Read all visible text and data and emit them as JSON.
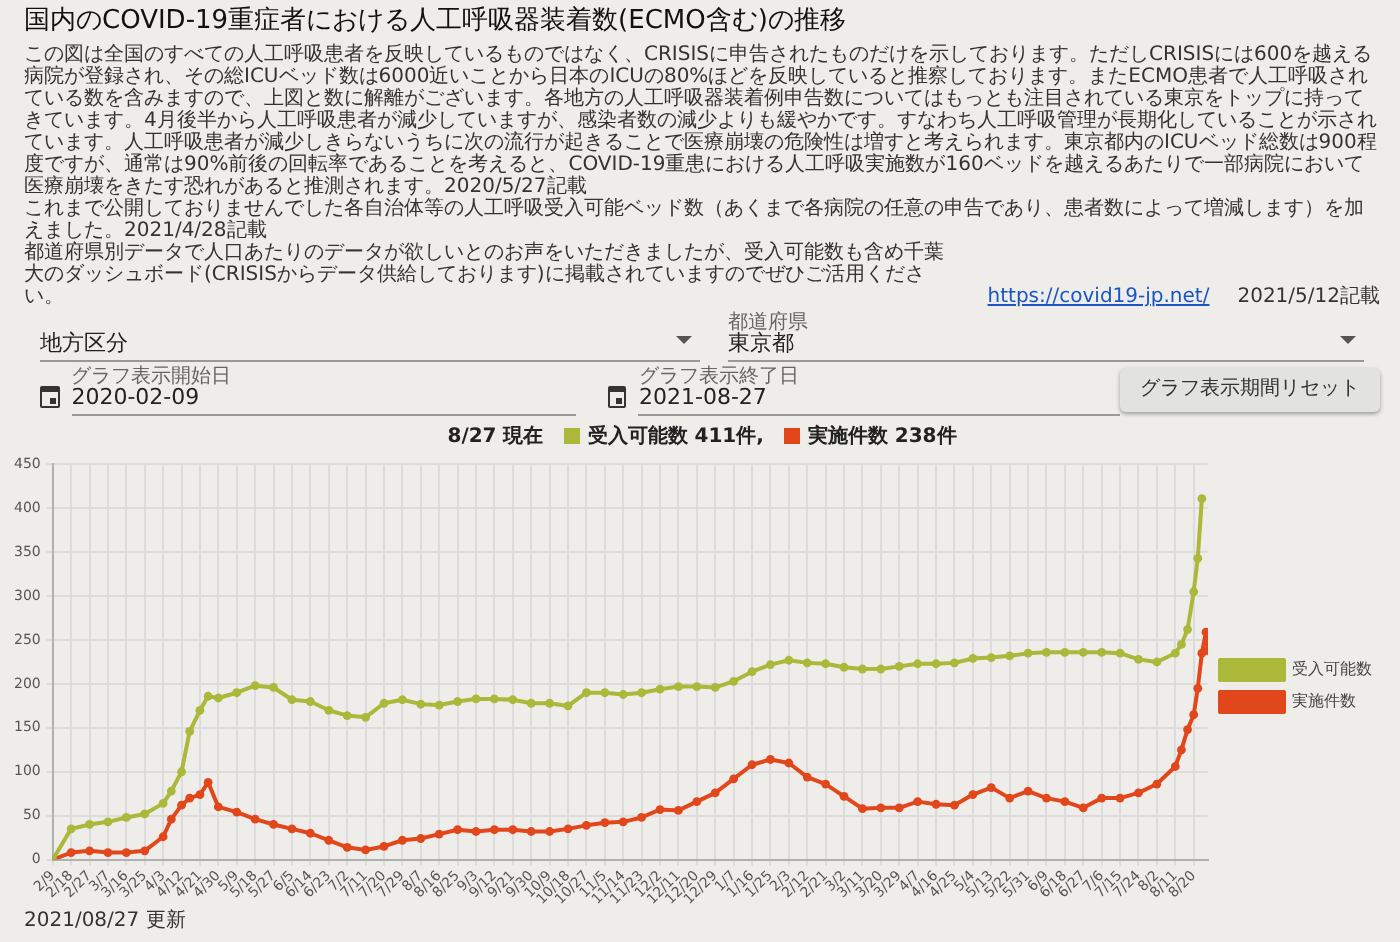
{
  "chart_data": {
    "type": "line",
    "title": "国内のCOVID-19重症者における人工呼吸器装着数(ECMO含む)の推移",
    "annotations": [
      "この図は全国のすべての人工呼吸患者を反映しているものではなく、CRISISに申告されたものだけを示しております。ただしCRISISには600を越える病院が登録され、その総ICUベッド数は6000近いことから日本のICUの80%ほどを反映していると推察しております。またECMO患者で人工呼吸されている数を含みますので、上図と数に解離がございます。各地方の人工呼吸器装着例申告数についてはもっとも注目されている東京をトップに持ってきています。4月後半から人工呼吸患者が減少していますが、感染者数の減少よりも緩やかです。すなわち人工呼吸管理が長期化していることが示されています。人工呼吸患者が減少しきらないうちに次の流行が起きることで医療崩壊の危険性は増すと考えられます。東京都内のICUベッド総数は900程度ですが、通常は90%前後の回転率であることを考えると、COVID-19重患における人工呼吸実施数が160ベッドを越えるあたりで一部病院において医療崩壊をきたす恐れがあると推測されます。2020/5/27記載",
      "これまで公開しておりませんでした各自治体等の人工呼吸受入可能ベッド数（あくまで各病院の任意の申告であり、患者数によって増減します）を加えました。2021/4/28記載",
      "都道府県別データで人口あたりのデータが欲しいとのお声をいただきましたが、受入可能数も含め千葉大のダッシュボード(CRISISからデータ供給しております)に掲載されていますのでぜひご活用ください。",
      "https://covid19-jp.net/",
      "2021/5/12記載",
      "地方区分",
      "都道府県",
      "東京都",
      "グラフ表示開始日",
      "2020-02-09",
      "グラフ表示終了日",
      "2021-08-27",
      "グラフ表示期間リセット",
      "8/27 現在",
      "受入可能数 411件,",
      "実施件数 238件",
      "2021/08/27 更新"
    ],
    "x": [
      "2020-02-09",
      "2020-02-18",
      "2020-02-27",
      "2020-03-07",
      "2020-03-16",
      "2020-03-25",
      "2020-04-03",
      "2020-04-07",
      "2020-04-12",
      "2020-04-16",
      "2020-04-21",
      "2020-04-25",
      "2020-04-30",
      "2020-05-09",
      "2020-05-18",
      "2020-05-27",
      "2020-06-05",
      "2020-06-14",
      "2020-06-23",
      "2020-07-02",
      "2020-07-11",
      "2020-07-20",
      "2020-07-29",
      "2020-08-07",
      "2020-08-16",
      "2020-08-25",
      "2020-09-03",
      "2020-09-12",
      "2020-09-21",
      "2020-09-30",
      "2020-10-09",
      "2020-10-18",
      "2020-10-27",
      "2020-11-05",
      "2020-11-14",
      "2020-11-23",
      "2020-12-02",
      "2020-12-11",
      "2020-12-20",
      "2020-12-29",
      "2021-01-07",
      "2021-01-16",
      "2021-01-25",
      "2021-02-03",
      "2021-02-12",
      "2021-02-21",
      "2021-03-02",
      "2021-03-11",
      "2021-03-20",
      "2021-03-29",
      "2021-04-07",
      "2021-04-16",
      "2021-04-25",
      "2021-05-04",
      "2021-05-13",
      "2021-05-22",
      "2021-05-31",
      "2021-06-09",
      "2021-06-18",
      "2021-06-27",
      "2021-07-06",
      "2021-07-15",
      "2021-07-24",
      "2021-08-02",
      "2021-08-11",
      "2021-08-14",
      "2021-08-17",
      "2021-08-20",
      "2021-08-22",
      "2021-08-24",
      "2021-08-26",
      "2021-08-27"
    ],
    "series": [
      {
        "name": "受入可能数",
        "color": "#abb839",
        "values": [
          0,
          35,
          40,
          43,
          48,
          52,
          64,
          78,
          100,
          146,
          170,
          186,
          184,
          190,
          198,
          196,
          182,
          180,
          170,
          164,
          162,
          178,
          182,
          177,
          176,
          180,
          183,
          183,
          182,
          178,
          178,
          175,
          190,
          190,
          188,
          190,
          194,
          197,
          197,
          196,
          203,
          214,
          222,
          227,
          224,
          223,
          219,
          217,
          217,
          220,
          223,
          223,
          224,
          229,
          230,
          232,
          235,
          236,
          236,
          236,
          236,
          235,
          228,
          225,
          235,
          245,
          262,
          305,
          343,
          411,
          null,
          null
        ]
      },
      {
        "name": "実施件数",
        "color": "#e2471c",
        "values": [
          0,
          8,
          10,
          8,
          8,
          10,
          26,
          46,
          62,
          70,
          74,
          88,
          60,
          54,
          46,
          40,
          35,
          30,
          22,
          14,
          11,
          15,
          22,
          24,
          29,
          34,
          32,
          34,
          34,
          32,
          32,
          35,
          39,
          42,
          43,
          48,
          57,
          56,
          66,
          76,
          92,
          108,
          114,
          110,
          94,
          86,
          72,
          58,
          59,
          59,
          66,
          63,
          62,
          74,
          82,
          70,
          78,
          70,
          66,
          59,
          70,
          70,
          76,
          86,
          106,
          125,
          148,
          165,
          195,
          235,
          259,
          238
        ]
      }
    ],
    "xlim": [
      "2020-02-09",
      "2021-08-27"
    ],
    "xticks": [
      {
        "value": "2020-02-09",
        "label": "2/9"
      },
      {
        "value": "2020-02-18",
        "label": "2/18"
      },
      {
        "value": "2020-02-27",
        "label": "2/27"
      },
      {
        "value": "2020-03-07",
        "label": "3/7"
      },
      {
        "value": "2020-03-16",
        "label": "3/16"
      },
      {
        "value": "2020-03-25",
        "label": "3/25"
      },
      {
        "value": "2020-04-03",
        "label": "4/3"
      },
      {
        "value": "2020-04-12",
        "label": "4/12"
      },
      {
        "value": "2020-04-21",
        "label": "4/21"
      },
      {
        "value": "2020-04-30",
        "label": "4/30"
      },
      {
        "value": "2020-05-09",
        "label": "5/9"
      },
      {
        "value": "2020-05-18",
        "label": "5/18"
      },
      {
        "value": "2020-05-27",
        "label": "5/27"
      },
      {
        "value": "2020-06-05",
        "label": "6/5"
      },
      {
        "value": "2020-06-14",
        "label": "6/14"
      },
      {
        "value": "2020-06-23",
        "label": "6/23"
      },
      {
        "value": "2020-07-02",
        "label": "7/2"
      },
      {
        "value": "2020-07-11",
        "label": "7/11"
      },
      {
        "value": "2020-07-20",
        "label": "7/20"
      },
      {
        "value": "2020-07-29",
        "label": "7/29"
      },
      {
        "value": "2020-08-07",
        "label": "8/7"
      },
      {
        "value": "2020-08-16",
        "label": "8/16"
      },
      {
        "value": "2020-08-25",
        "label": "8/25"
      },
      {
        "value": "2020-09-03",
        "label": "9/3"
      },
      {
        "value": "2020-09-12",
        "label": "9/12"
      },
      {
        "value": "2020-09-21",
        "label": "9/21"
      },
      {
        "value": "2020-09-30",
        "label": "9/30"
      },
      {
        "value": "2020-10-09",
        "label": "10/9"
      },
      {
        "value": "2020-10-18",
        "label": "10/18"
      },
      {
        "value": "2020-10-27",
        "label": "10/27"
      },
      {
        "value": "2020-11-05",
        "label": "11/5"
      },
      {
        "value": "2020-11-14",
        "label": "11/14"
      },
      {
        "value": "2020-11-23",
        "label": "11/23"
      },
      {
        "value": "2020-12-02",
        "label": "12/2"
      },
      {
        "value": "2020-12-11",
        "label": "12/11"
      },
      {
        "value": "2020-12-20",
        "label": "12/20"
      },
      {
        "value": "2020-12-29",
        "label": "12/29"
      },
      {
        "value": "2021-01-07",
        "label": "1/7"
      },
      {
        "value": "2021-01-16",
        "label": "1/16"
      },
      {
        "value": "2021-01-25",
        "label": "1/25"
      },
      {
        "value": "2021-02-03",
        "label": "2/3"
      },
      {
        "value": "2021-02-12",
        "label": "2/12"
      },
      {
        "value": "2021-02-21",
        "label": "2/21"
      },
      {
        "value": "2021-03-02",
        "label": "3/2"
      },
      {
        "value": "2021-03-11",
        "label": "3/11"
      },
      {
        "value": "2021-03-20",
        "label": "3/20"
      },
      {
        "value": "2021-03-29",
        "label": "3/29"
      },
      {
        "value": "2021-04-07",
        "label": "4/7"
      },
      {
        "value": "2021-04-16",
        "label": "4/16"
      },
      {
        "value": "2021-04-25",
        "label": "4/25"
      },
      {
        "value": "2021-05-04",
        "label": "5/4"
      },
      {
        "value": "2021-05-13",
        "label": "5/13"
      },
      {
        "value": "2021-05-22",
        "label": "5/22"
      },
      {
        "value": "2021-05-31",
        "label": "5/31"
      },
      {
        "value": "2021-06-09",
        "label": "6/9"
      },
      {
        "value": "2021-06-18",
        "label": "6/18"
      },
      {
        "value": "2021-06-27",
        "label": "6/27"
      },
      {
        "value": "2021-07-06",
        "label": "7/6"
      },
      {
        "value": "2021-07-15",
        "label": "7/15"
      },
      {
        "value": "2021-07-24",
        "label": "7/24"
      },
      {
        "value": "2021-08-02",
        "label": "8/2"
      },
      {
        "value": "2021-08-11",
        "label": "8/11"
      },
      {
        "value": "2021-08-20",
        "label": "8/20"
      }
    ],
    "ylim": [
      0,
      450
    ],
    "yticks": [
      0,
      50,
      100,
      150,
      200,
      250,
      300,
      350,
      400,
      450
    ],
    "grid": true,
    "legend": "right",
    "marker": "circle"
  }
}
